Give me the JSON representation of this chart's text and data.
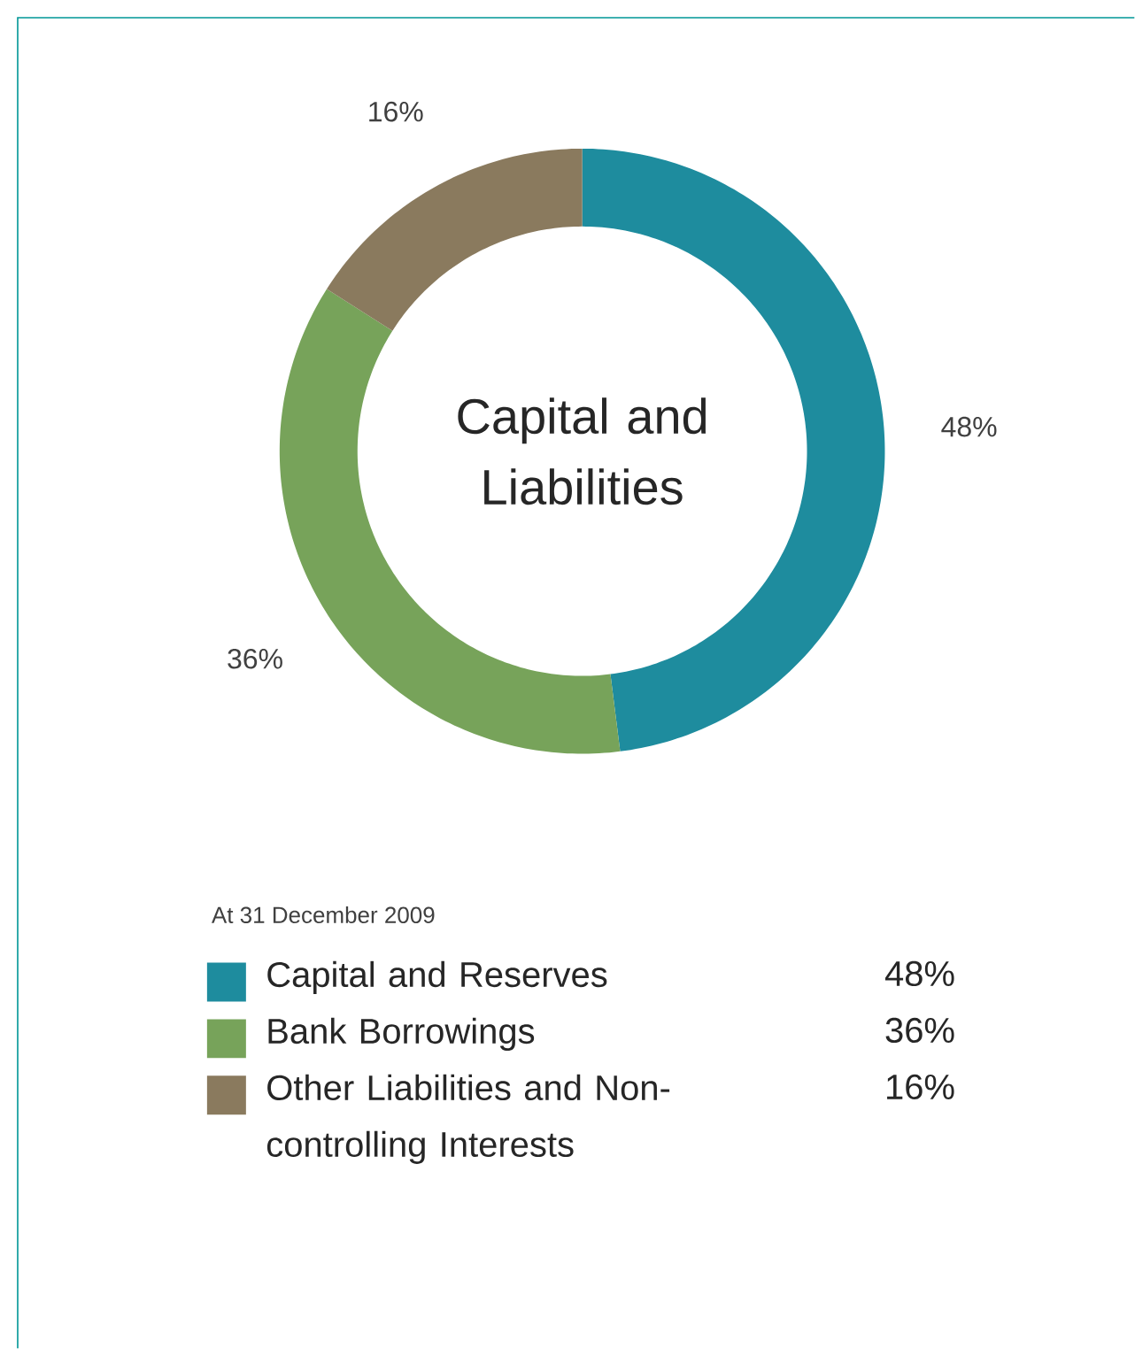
{
  "chart_data": {
    "type": "donut",
    "title": "Capital and Liabilities",
    "categories": [
      "Capital and Reserves",
      "Bank Borrowings",
      "Other Liabilities and Non-controlling Interests"
    ],
    "values": [
      48,
      36,
      16
    ],
    "value_labels": [
      "48%",
      "36%",
      "16%"
    ],
    "colors": [
      "#1e8c9e",
      "#77a35a",
      "#8a7a5e"
    ],
    "legend": "bottom",
    "annotations": [
      "At 31 December 2009"
    ]
  }
}
